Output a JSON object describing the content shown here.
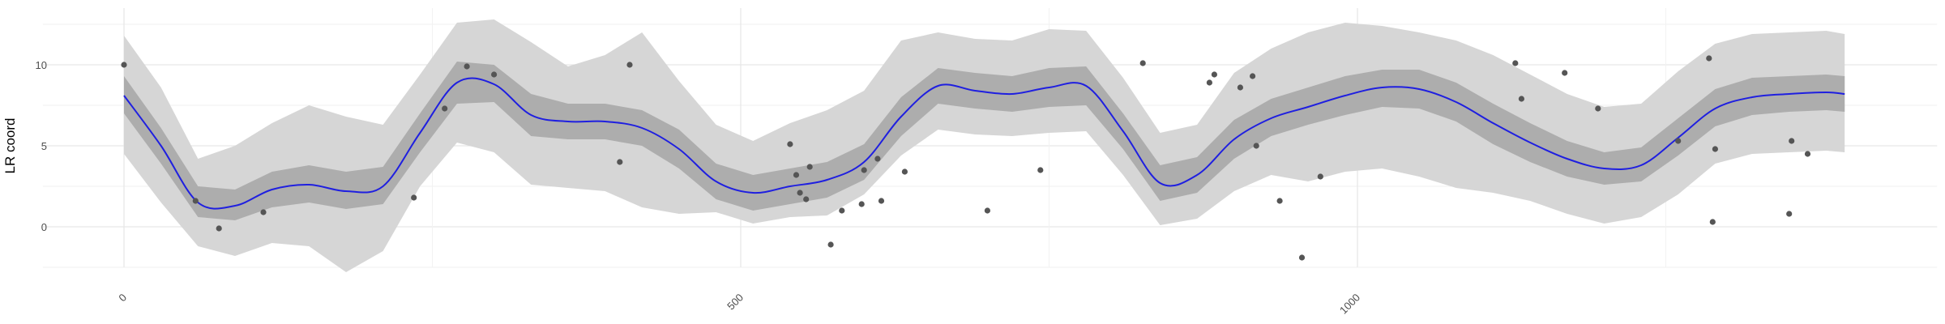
{
  "chart_data": {
    "type": "line",
    "title": "",
    "xlabel": "",
    "ylabel": "LR coord",
    "xlim": [
      -100,
      1470
    ],
    "ylim": [
      -2.5,
      13.5
    ],
    "x_ticks": [
      0,
      500,
      1000
    ],
    "x_tick_labels": [
      "0",
      "500",
      "1000"
    ],
    "y_ticks": [
      0,
      5,
      10
    ],
    "y_tick_labels": [
      "0",
      "5",
      "10"
    ],
    "grid": true,
    "legend": "none",
    "colors": {
      "smooth_line": "#1f1fe0",
      "inner_band": "#adadad",
      "outer_band": "#d6d6d6",
      "points": "#555555",
      "grid": "#e6e6e6"
    },
    "series": [
      {
        "kind": "smooth",
        "x": [
          0,
          30,
          60,
          90,
          120,
          150,
          180,
          210,
          240,
          270,
          300,
          330,
          360,
          390,
          420,
          450,
          480,
          510,
          540,
          570,
          600,
          630,
          660,
          690,
          720,
          750,
          780,
          810,
          840,
          870,
          900,
          930,
          960,
          990,
          1020,
          1050,
          1080,
          1110,
          1140,
          1170,
          1200,
          1230,
          1260,
          1290,
          1320,
          1350,
          1380,
          1395
        ],
        "y": [
          8.1,
          5.0,
          1.5,
          1.3,
          2.3,
          2.6,
          2.2,
          2.5,
          5.8,
          8.9,
          8.8,
          6.9,
          6.5,
          6.5,
          6.1,
          4.8,
          2.8,
          2.1,
          2.5,
          2.9,
          4.0,
          6.8,
          8.7,
          8.4,
          8.2,
          8.6,
          8.7,
          5.9,
          2.7,
          3.2,
          5.4,
          6.7,
          7.4,
          8.1,
          8.6,
          8.5,
          7.7,
          6.4,
          5.2,
          4.2,
          3.6,
          3.8,
          5.5,
          7.3,
          8.0,
          8.2,
          8.3,
          8.2
        ],
        "inner_lower": [
          7.0,
          3.9,
          0.6,
          0.4,
          1.2,
          1.5,
          1.1,
          1.4,
          4.6,
          7.6,
          7.7,
          5.6,
          5.4,
          5.4,
          5.0,
          3.6,
          1.7,
          1.0,
          1.4,
          1.8,
          2.9,
          5.6,
          7.6,
          7.3,
          7.1,
          7.4,
          7.5,
          4.8,
          1.6,
          2.1,
          4.2,
          5.6,
          6.3,
          6.9,
          7.4,
          7.3,
          6.5,
          5.1,
          4.0,
          3.1,
          2.6,
          2.8,
          4.4,
          6.2,
          6.9,
          7.1,
          7.2,
          7.1
        ],
        "inner_upper": [
          9.3,
          6.1,
          2.5,
          2.3,
          3.4,
          3.8,
          3.4,
          3.7,
          7.0,
          10.2,
          10.0,
          8.2,
          7.6,
          7.6,
          7.2,
          6.0,
          3.9,
          3.2,
          3.6,
          4.0,
          5.1,
          8.0,
          9.8,
          9.5,
          9.3,
          9.8,
          9.9,
          7.0,
          3.8,
          4.3,
          6.6,
          7.9,
          8.6,
          9.3,
          9.7,
          9.7,
          8.9,
          7.6,
          6.4,
          5.3,
          4.6,
          4.9,
          6.7,
          8.5,
          9.2,
          9.3,
          9.4,
          9.3
        ],
        "outer_lower": [
          4.5,
          1.5,
          -1.2,
          -1.8,
          -1.0,
          -1.2,
          -2.8,
          -1.5,
          2.5,
          5.2,
          4.6,
          2.6,
          2.4,
          2.2,
          1.2,
          0.8,
          0.9,
          0.2,
          0.6,
          0.7,
          2.0,
          4.4,
          6.0,
          5.7,
          5.6,
          5.8,
          5.9,
          3.2,
          0.1,
          0.5,
          2.2,
          3.2,
          2.8,
          3.4,
          3.6,
          3.1,
          2.4,
          2.1,
          1.6,
          0.8,
          0.2,
          0.6,
          2.0,
          3.9,
          4.5,
          4.6,
          4.7,
          4.6
        ],
        "outer_upper": [
          11.8,
          8.6,
          4.2,
          5.0,
          6.4,
          7.5,
          6.8,
          6.3,
          9.4,
          12.6,
          12.8,
          11.4,
          9.9,
          10.6,
          12.0,
          9.0,
          6.3,
          5.3,
          6.4,
          7.2,
          8.4,
          11.5,
          12.0,
          11.6,
          11.5,
          12.2,
          12.1,
          9.2,
          5.8,
          6.3,
          9.5,
          11.0,
          12.0,
          12.6,
          12.4,
          12.0,
          11.5,
          10.6,
          9.4,
          8.2,
          7.4,
          7.6,
          9.6,
          11.3,
          11.9,
          12.0,
          12.1,
          11.9
        ]
      },
      {
        "kind": "points",
        "x": [
          0,
          58,
          77,
          113,
          235,
          260,
          278,
          300,
          402,
          410,
          540,
          545,
          548,
          553,
          556,
          573,
          582,
          598,
          600,
          611,
          614,
          633,
          700,
          743,
          826,
          880,
          884,
          905,
          915,
          918,
          937,
          955,
          970,
          1128,
          1133,
          1168,
          1195,
          1260,
          1285,
          1288,
          1290,
          1350,
          1352,
          1365
        ],
        "y": [
          10.0,
          1.6,
          -0.1,
          0.9,
          1.8,
          7.3,
          9.9,
          9.4,
          4.0,
          10.0,
          5.1,
          3.2,
          2.1,
          1.7,
          3.7,
          -1.1,
          1.0,
          1.4,
          3.5,
          4.2,
          1.6,
          3.4,
          1.0,
          3.5,
          10.1,
          8.9,
          9.4,
          8.6,
          9.3,
          5.0,
          1.6,
          -1.9,
          3.1,
          10.1,
          7.9,
          9.5,
          7.3,
          5.3,
          10.4,
          0.3,
          4.8,
          0.8,
          5.3,
          4.5
        ]
      }
    ]
  }
}
